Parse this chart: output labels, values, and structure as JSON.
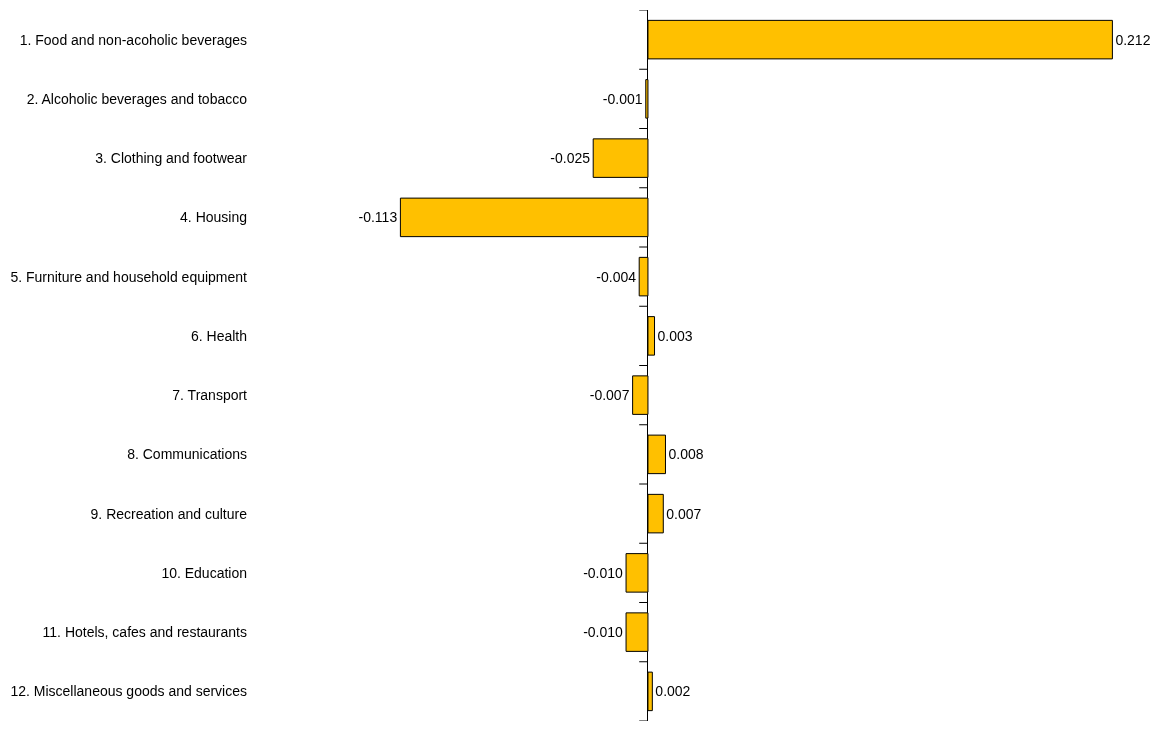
{
  "chart_data": {
    "type": "bar",
    "orientation": "horizontal",
    "tick_labels": "y",
    "categories": [
      "1. Food and non-acoholic beverages",
      "2. Alcoholic beverages and tobacco",
      "3. Clothing and footwear",
      "4. Housing",
      "5. Furniture and household equipment",
      "6. Health",
      "7. Transport",
      "8. Communications",
      "9. Recreation and culture",
      "10. Education",
      "11. Hotels, cafes and restaurants",
      "12. Miscellaneous goods and services"
    ],
    "values": [
      0.212,
      -0.001,
      -0.025,
      -0.113,
      -0.004,
      0.003,
      -0.007,
      0.008,
      0.007,
      -0.01,
      -0.01,
      0.002
    ],
    "value_labels": [
      "0.212",
      "-0.001",
      "-0.025",
      "-0.113",
      "-0.004",
      "0.003",
      "-0.007",
      "0.008",
      "0.007",
      "-0.010",
      "-0.010",
      "0.002"
    ],
    "color": "#ffc000"
  }
}
